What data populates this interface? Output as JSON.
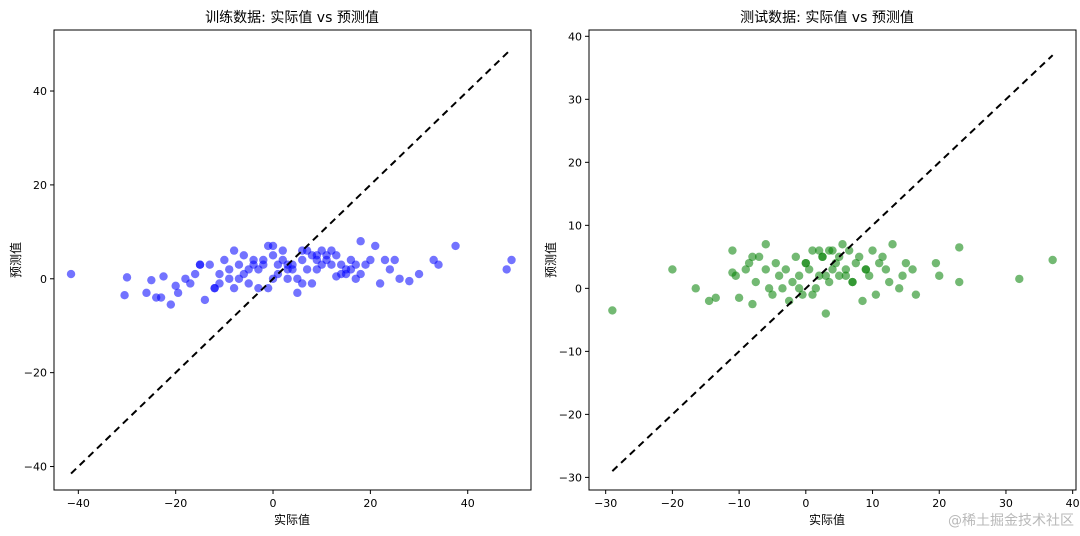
{
  "chart_data": [
    {
      "type": "scatter",
      "title": "训练数据: 实际值 vs 预测值",
      "xlabel": "实际值",
      "ylabel": "预测值",
      "xlim": [
        -45,
        53
      ],
      "ylim": [
        -45,
        53
      ],
      "xticks": [
        -40,
        -20,
        0,
        20,
        40
      ],
      "yticks": [
        -40,
        -20,
        0,
        20,
        40
      ],
      "point_color": "#0000ff",
      "reference_line": {
        "from": [
          -41.5,
          -41.5
        ],
        "to": [
          48.5,
          48.5
        ],
        "color": "#000000",
        "style": "dashed"
      },
      "series": [
        {
          "x": [
            -41.5,
            -30,
            -30.5,
            -26,
            -25,
            -24,
            -23,
            -22.5,
            -21,
            -20,
            -19.5,
            -18,
            -17,
            -16,
            -15,
            -14,
            -13,
            -12,
            -11,
            -10,
            -9,
            -8,
            -7,
            -6,
            -5,
            -4,
            -3,
            -2,
            -1,
            0,
            1,
            2,
            3,
            4,
            5,
            6,
            7,
            8,
            9,
            10,
            11,
            12,
            13,
            14,
            15,
            16,
            17,
            18,
            19,
            20,
            21,
            22,
            23,
            24,
            25,
            26,
            28,
            30,
            33,
            34,
            37.5,
            48,
            49,
            -6,
            -3,
            0,
            3,
            6,
            9,
            12,
            -9,
            -12,
            -15,
            15,
            18,
            -4,
            2,
            7,
            -1,
            5,
            10,
            -7,
            13,
            4,
            -2,
            8,
            1,
            11,
            -5,
            6,
            14,
            -11,
            17,
            3,
            -8,
            0,
            9,
            16
          ],
          "y": [
            1,
            0.3,
            -3.5,
            -3,
            -0.3,
            -4,
            -4,
            0.5,
            -5.5,
            -1.5,
            -3,
            0,
            -1,
            1,
            3,
            -4.5,
            3,
            -2,
            -1,
            4,
            0,
            6,
            3,
            5,
            -1,
            4,
            2,
            3,
            -2,
            5,
            1,
            6,
            2,
            3,
            0,
            4,
            6,
            5,
            2,
            3,
            4,
            6,
            0.5,
            3,
            2,
            4,
            0,
            8,
            3,
            4,
            7,
            -1,
            4,
            2,
            4,
            0,
            -0.5,
            1,
            4,
            3,
            7,
            2,
            4,
            1,
            -2,
            7,
            0,
            -1,
            5,
            3,
            2,
            -2,
            3,
            1,
            1,
            3,
            4,
            2,
            7,
            -3,
            6,
            0,
            5,
            2,
            4,
            -1,
            3,
            5,
            2,
            6,
            1,
            1,
            3,
            3,
            -2,
            0,
            4,
            2
          ]
        }
      ]
    },
    {
      "type": "scatter",
      "title": "测试数据: 实际值 vs 预测值",
      "xlabel": "实际值",
      "ylabel": "预测值",
      "xlim": [
        -32.5,
        40.5
      ],
      "ylim": [
        -32,
        41
      ],
      "xticks": [
        -30,
        -20,
        -10,
        0,
        10,
        20,
        30,
        40
      ],
      "yticks": [
        -30,
        -20,
        -10,
        0,
        10,
        20,
        30,
        40
      ],
      "point_color": "#008000",
      "reference_line": {
        "from": [
          -29,
          -29
        ],
        "to": [
          37,
          37
        ],
        "color": "#000000",
        "style": "dashed"
      },
      "series": [
        {
          "x": [
            -29,
            -20,
            -16.5,
            -14.5,
            -13.5,
            -11,
            -11,
            -10.5,
            -10,
            -9,
            -8.5,
            -8,
            -8,
            -7.5,
            -7,
            -6,
            -6,
            -5.5,
            -5,
            -4.5,
            -4,
            -3,
            -2.5,
            -2,
            -1.5,
            -1,
            -0.5,
            0,
            0.5,
            1,
            1.5,
            2,
            2.5,
            3,
            3.5,
            4,
            4.5,
            5,
            5.5,
            6,
            6.5,
            7,
            7.5,
            8,
            8.5,
            9,
            9.5,
            10,
            10.5,
            11,
            11.5,
            12,
            12.5,
            13,
            14,
            14.5,
            15,
            16,
            16.5,
            19.5,
            20,
            23,
            23,
            32,
            37,
            1,
            3,
            5,
            2,
            4,
            6,
            0,
            -1,
            7,
            9,
            2.5,
            3.5,
            -3.5
          ],
          "y": [
            -3.5,
            3,
            0,
            -2,
            -1.5,
            2.5,
            6,
            2,
            -1.5,
            3,
            4,
            5,
            -2.5,
            1,
            5,
            7,
            3,
            0,
            -1,
            4,
            2,
            3,
            -2,
            1,
            5,
            2,
            -1,
            4,
            3,
            6,
            0,
            2,
            5,
            -4,
            1,
            6,
            4,
            2,
            7,
            3,
            6,
            1,
            4,
            5,
            -2,
            3,
            2,
            6,
            -1,
            4,
            5,
            3,
            1,
            7,
            0,
            2,
            4,
            3,
            -1,
            4,
            2,
            6.5,
            1,
            1.5,
            4.5,
            -1,
            2,
            5,
            6,
            3,
            2,
            4,
            0,
            1,
            3,
            5,
            6,
            0
          ]
        }
      ]
    }
  ],
  "watermark": "@稀土掘金技术社区"
}
